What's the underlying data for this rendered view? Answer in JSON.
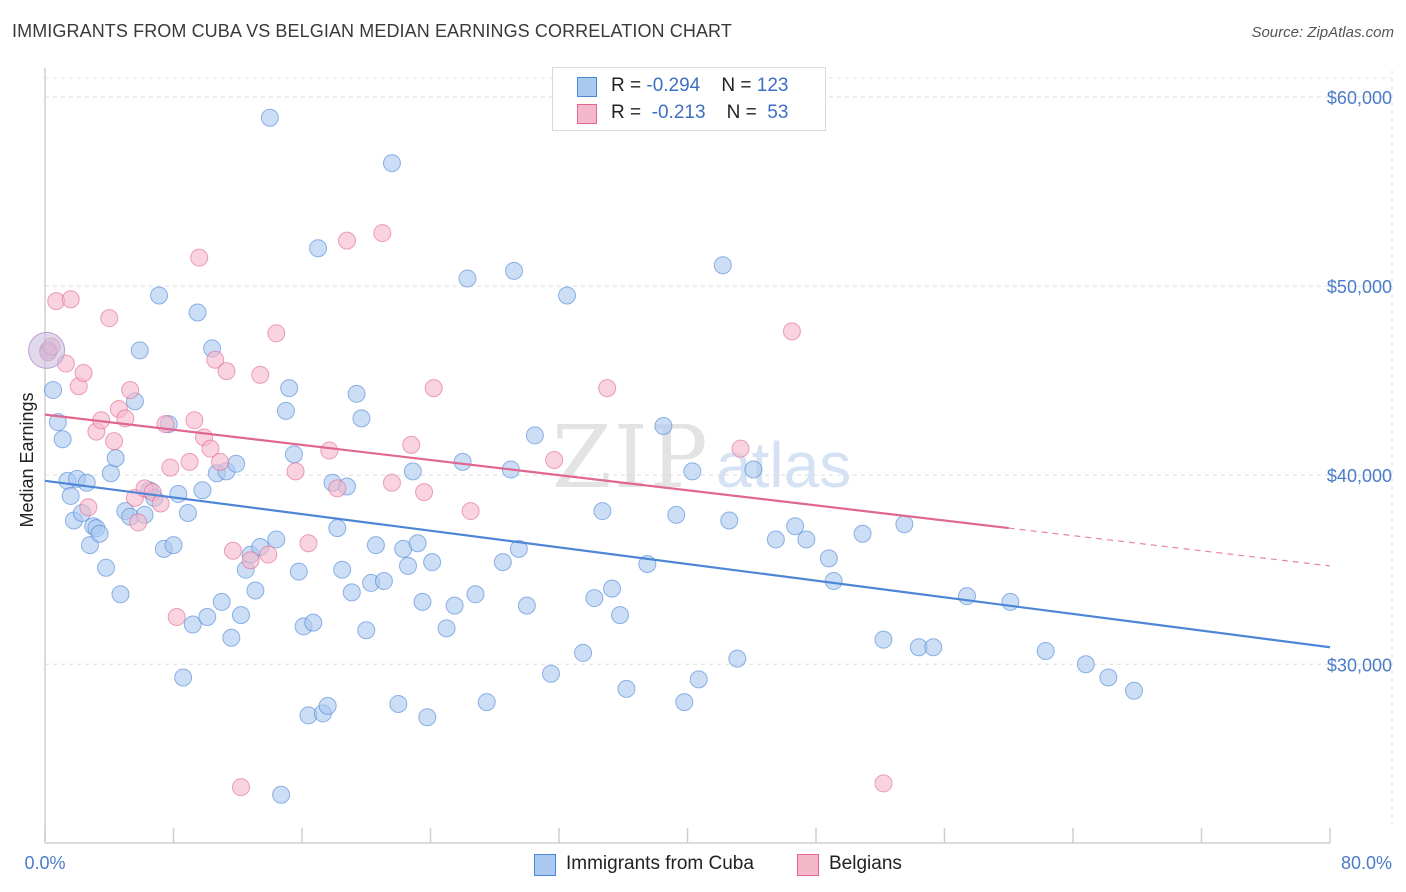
{
  "title": "IMMIGRANTS FROM CUBA VS BELGIAN MEDIAN EARNINGS CORRELATION CHART",
  "source": "Source: ZipAtlas.com",
  "watermark": {
    "zip": "ZIP",
    "atlas": "atlas"
  },
  "legend_top": [
    {
      "r_label": "R = ",
      "r_value": "-0.294",
      "n_label": "N = ",
      "n_value": "123",
      "color": "#aac8f0"
    },
    {
      "r_label": "R = ",
      "r_value": " -0.213",
      "n_label": "N = ",
      "n_value": " 53",
      "color": "#f5b8cb"
    }
  ],
  "legend_bottom": [
    {
      "label": "Immigrants from Cuba",
      "color": "#aac8f0"
    },
    {
      "label": "Belgians",
      "color": "#f5b8cb"
    }
  ],
  "chart_data": {
    "type": "scatter",
    "title": "IMMIGRANTS FROM CUBA VS BELGIAN MEDIAN EARNINGS CORRELATION CHART",
    "xlabel": "",
    "ylabel": "Median Earnings",
    "xlim": [
      0,
      80
    ],
    "ylim": [
      21500,
      61000
    ],
    "x_tick_labels": [
      "0.0%",
      "80.0%"
    ],
    "y_ticks": [
      30000,
      40000,
      50000,
      60000
    ],
    "y_tick_labels": [
      "$30,000",
      "$40,000",
      "$50,000",
      "$60,000"
    ],
    "grid": true,
    "series": [
      {
        "name": "Immigrants from Cuba",
        "color": "#4d86d6",
        "fill": "#aac8f0",
        "r": -0.294,
        "n": 123,
        "trend": {
          "x": [
            0,
            80
          ],
          "y": [
            39700,
            30900
          ]
        },
        "points": [
          [
            0.2,
            46600
          ],
          [
            0.5,
            44500
          ],
          [
            0.8,
            42800
          ],
          [
            1.1,
            41900
          ],
          [
            1.4,
            39700
          ],
          [
            1.6,
            38900
          ],
          [
            1.8,
            37600
          ],
          [
            2.0,
            39800
          ],
          [
            2.3,
            38000
          ],
          [
            2.6,
            39600
          ],
          [
            2.8,
            36300
          ],
          [
            3.0,
            37300
          ],
          [
            3.2,
            37200
          ],
          [
            3.4,
            36900
          ],
          [
            3.8,
            35100
          ],
          [
            4.1,
            40100
          ],
          [
            4.4,
            40900
          ],
          [
            4.7,
            33700
          ],
          [
            5.0,
            38100
          ],
          [
            5.3,
            37800
          ],
          [
            5.6,
            43900
          ],
          [
            5.9,
            46600
          ],
          [
            6.2,
            37900
          ],
          [
            6.5,
            39200
          ],
          [
            6.8,
            38800
          ],
          [
            7.1,
            49500
          ],
          [
            7.4,
            36100
          ],
          [
            7.7,
            42700
          ],
          [
            8.0,
            36300
          ],
          [
            8.3,
            39000
          ],
          [
            8.6,
            29300
          ],
          [
            8.9,
            38000
          ],
          [
            9.2,
            32100
          ],
          [
            9.5,
            48600
          ],
          [
            9.8,
            39200
          ],
          [
            10.1,
            32500
          ],
          [
            10.4,
            46700
          ],
          [
            10.7,
            40100
          ],
          [
            11.0,
            33300
          ],
          [
            11.3,
            40200
          ],
          [
            11.6,
            31400
          ],
          [
            11.9,
            40600
          ],
          [
            12.2,
            32600
          ],
          [
            12.5,
            35000
          ],
          [
            12.8,
            35800
          ],
          [
            13.1,
            33900
          ],
          [
            13.4,
            36200
          ],
          [
            14.0,
            58900
          ],
          [
            14.4,
            36600
          ],
          [
            14.7,
            23100
          ],
          [
            15.0,
            43400
          ],
          [
            15.2,
            44600
          ],
          [
            15.5,
            41100
          ],
          [
            15.8,
            34900
          ],
          [
            16.1,
            32000
          ],
          [
            16.4,
            27300
          ],
          [
            16.7,
            32200
          ],
          [
            17.0,
            52000
          ],
          [
            17.3,
            27400
          ],
          [
            17.6,
            27800
          ],
          [
            17.9,
            39600
          ],
          [
            18.2,
            37200
          ],
          [
            18.5,
            35000
          ],
          [
            18.8,
            39400
          ],
          [
            19.1,
            33800
          ],
          [
            19.4,
            44300
          ],
          [
            19.7,
            43000
          ],
          [
            20.0,
            31800
          ],
          [
            20.3,
            34300
          ],
          [
            20.6,
            36300
          ],
          [
            21.1,
            34400
          ],
          [
            21.6,
            56500
          ],
          [
            22.0,
            27900
          ],
          [
            22.3,
            36100
          ],
          [
            22.6,
            35200
          ],
          [
            22.9,
            40200
          ],
          [
            23.2,
            36400
          ],
          [
            23.5,
            33300
          ],
          [
            23.8,
            27200
          ],
          [
            24.1,
            35400
          ],
          [
            25.0,
            31900
          ],
          [
            25.5,
            33100
          ],
          [
            26.0,
            40700
          ],
          [
            26.3,
            50400
          ],
          [
            26.8,
            33700
          ],
          [
            27.5,
            28000
          ],
          [
            28.5,
            35400
          ],
          [
            29.0,
            40300
          ],
          [
            29.2,
            50800
          ],
          [
            29.5,
            36100
          ],
          [
            30.0,
            33100
          ],
          [
            30.5,
            42100
          ],
          [
            31.5,
            29500
          ],
          [
            32.5,
            49500
          ],
          [
            33.5,
            30600
          ],
          [
            34.2,
            33500
          ],
          [
            34.7,
            38100
          ],
          [
            35.3,
            34000
          ],
          [
            35.8,
            32600
          ],
          [
            36.2,
            28700
          ],
          [
            37.5,
            35300
          ],
          [
            38.5,
            42600
          ],
          [
            39.3,
            37900
          ],
          [
            39.8,
            28000
          ],
          [
            40.3,
            40200
          ],
          [
            40.7,
            29200
          ],
          [
            42.2,
            51100
          ],
          [
            42.6,
            37600
          ],
          [
            43.1,
            30300
          ],
          [
            44.1,
            40300
          ],
          [
            45.5,
            36600
          ],
          [
            46.7,
            37300
          ],
          [
            47.4,
            36600
          ],
          [
            48.8,
            35600
          ],
          [
            49.1,
            34400
          ],
          [
            50.9,
            36900
          ],
          [
            52.2,
            31300
          ],
          [
            53.5,
            37400
          ],
          [
            54.4,
            30900
          ],
          [
            55.3,
            30900
          ],
          [
            57.4,
            33600
          ],
          [
            60.1,
            33300
          ],
          [
            62.3,
            30700
          ],
          [
            64.8,
            30000
          ],
          [
            66.2,
            29300
          ],
          [
            67.8,
            28600
          ]
        ]
      },
      {
        "name": "Belgians",
        "color": "#e0678f",
        "fill": "#f5b8cb",
        "r": -0.213,
        "n": 53,
        "trend": {
          "x": [
            0,
            60
          ],
          "y": [
            43200,
            37200
          ]
        },
        "trend_dashed": {
          "x": [
            60,
            80
          ],
          "y": [
            37200,
            35200
          ]
        },
        "points": [
          [
            0.2,
            46500
          ],
          [
            0.7,
            49200
          ],
          [
            1.3,
            45900
          ],
          [
            1.6,
            49300
          ],
          [
            2.1,
            44700
          ],
          [
            2.4,
            45400
          ],
          [
            2.7,
            38300
          ],
          [
            3.2,
            42300
          ],
          [
            3.5,
            42900
          ],
          [
            4.0,
            48300
          ],
          [
            4.3,
            41800
          ],
          [
            4.6,
            43500
          ],
          [
            5.0,
            43000
          ],
          [
            5.3,
            44500
          ],
          [
            5.6,
            38800
          ],
          [
            5.8,
            37500
          ],
          [
            6.2,
            39300
          ],
          [
            6.7,
            39100
          ],
          [
            7.2,
            38500
          ],
          [
            7.5,
            42700
          ],
          [
            7.8,
            40400
          ],
          [
            8.2,
            32500
          ],
          [
            9.0,
            40700
          ],
          [
            9.3,
            42900
          ],
          [
            9.6,
            51500
          ],
          [
            9.9,
            42000
          ],
          [
            10.3,
            41400
          ],
          [
            10.6,
            46100
          ],
          [
            10.9,
            40700
          ],
          [
            11.3,
            45500
          ],
          [
            11.7,
            36000
          ],
          [
            12.2,
            23500
          ],
          [
            12.8,
            35500
          ],
          [
            13.4,
            45300
          ],
          [
            13.9,
            35800
          ],
          [
            14.4,
            47500
          ],
          [
            15.6,
            40200
          ],
          [
            16.4,
            36400
          ],
          [
            17.7,
            41300
          ],
          [
            18.2,
            39300
          ],
          [
            18.8,
            52400
          ],
          [
            21.0,
            52800
          ],
          [
            21.6,
            39600
          ],
          [
            22.8,
            41600
          ],
          [
            23.6,
            39100
          ],
          [
            24.2,
            44600
          ],
          [
            26.5,
            38100
          ],
          [
            31.7,
            40800
          ],
          [
            35.0,
            44600
          ],
          [
            43.3,
            41400
          ],
          [
            46.5,
            47600
          ],
          [
            52.2,
            23700
          ],
          [
            0.4,
            46800
          ]
        ]
      }
    ]
  }
}
